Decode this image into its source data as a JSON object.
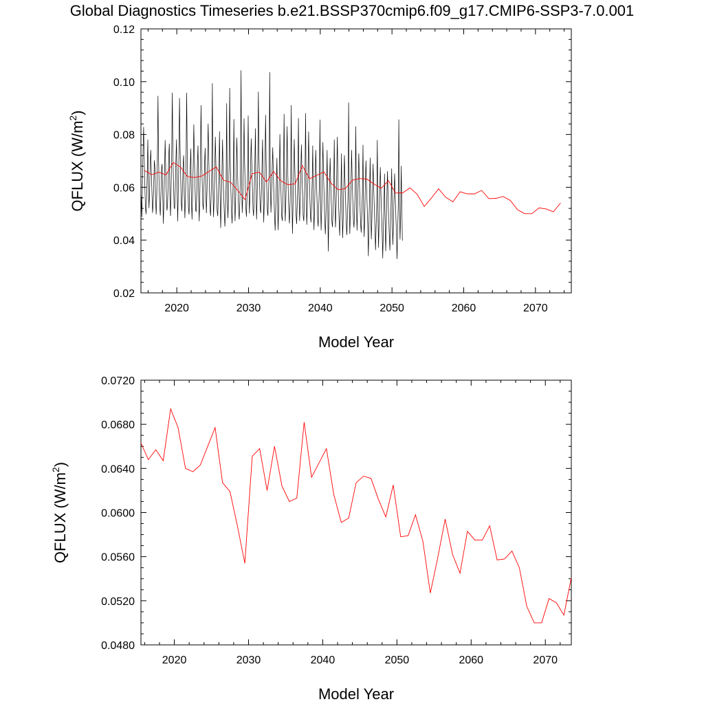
{
  "title": "Global Diagnostics Timeseries b.e21.BSSP370cmip6.f09_g17.CMIP6-SSP3-7.0.001",
  "colors": {
    "monthly": "#000000",
    "annual": "#ff0000",
    "axes": "#000000"
  },
  "chart_data": [
    {
      "type": "line",
      "title": "",
      "xlabel": "Model Year",
      "ylabel": "QFLUX (W/m",
      "ylabel_superscript": "2",
      "ylabel_close": ")",
      "xlim": [
        2015,
        2075
      ],
      "ylim": [
        0.02,
        0.12
      ],
      "xticks": [
        "2020",
        "2030",
        "2040",
        "2050",
        "2060",
        "2070"
      ],
      "yticks": [
        "0.02",
        "0.04",
        "0.06",
        "0.08",
        "0.10",
        "0.12"
      ],
      "grid": false,
      "series": [
        {
          "kind": "monthly",
          "color": "#000000",
          "x_start": 2015.04,
          "x_step": 0.08333,
          "values": [
            0.0568,
            0.0487,
            0.0621,
            0.0734,
            0.0828,
            0.0703,
            0.0612,
            0.0529,
            0.0498,
            0.0551,
            0.0642,
            0.0781,
            0.0601,
            0.0521,
            0.0583,
            0.0696,
            0.0741,
            0.0652,
            0.0574,
            0.0503,
            0.0541,
            0.0618,
            0.0702,
            0.0672,
            0.0552,
            0.0497,
            0.0568,
            0.0701,
            0.0946,
            0.0712,
            0.0601,
            0.0528,
            0.0493,
            0.0579,
            0.0671,
            0.0688,
            0.0571,
            0.0462,
            0.0554,
            0.0658,
            0.0779,
            0.0663,
            0.0584,
            0.0512,
            0.0531,
            0.0611,
            0.0718,
            0.0765,
            0.0567,
            0.0491,
            0.0603,
            0.0742,
            0.0958,
            0.0728,
            0.0611,
            0.0526,
            0.0518,
            0.0598,
            0.0697,
            0.0781,
            0.0588,
            0.0471,
            0.0579,
            0.0714,
            0.0938,
            0.0761,
            0.0632,
            0.0542,
            0.0509,
            0.0591,
            0.0682,
            0.0721,
            0.0572,
            0.0483,
            0.0561,
            0.0688,
            0.0958,
            0.0713,
            0.0612,
            0.0521,
            0.0497,
            0.0583,
            0.0674,
            0.0746,
            0.0553,
            0.0478,
            0.0582,
            0.0691,
            0.0838,
            0.0702,
            0.0603,
            0.0512,
            0.0508,
            0.0592,
            0.0688,
            0.0758,
            0.0561,
            0.0471,
            0.0563,
            0.0701,
            0.0911,
            0.0721,
            0.0621,
            0.0534,
            0.0514,
            0.0603,
            0.0693,
            0.0749,
            0.0584,
            0.0502,
            0.0584,
            0.0712,
            0.0841,
            0.0708,
            0.0603,
            0.0521,
            0.0492,
            0.0567,
            0.0667,
            0.0994,
            0.0598,
            0.0487,
            0.0561,
            0.0672,
            0.0791,
            0.0682,
            0.0594,
            0.0513,
            0.0491,
            0.0562,
            0.0644,
            0.0812,
            0.0566,
            0.0446,
            0.0545,
            0.0651,
            0.0781,
            0.0654,
            0.0573,
            0.0498,
            0.0451,
            0.0521,
            0.0612,
            0.0918,
            0.0572,
            0.0483,
            0.0562,
            0.0687,
            0.0976,
            0.0689,
            0.0592,
            0.0508,
            0.0463,
            0.0538,
            0.0641,
            0.0858,
            0.0564,
            0.0472,
            0.0553,
            0.0678,
            0.0788,
            0.0671,
            0.0582,
            0.0509,
            0.0478,
            0.0551,
            0.0659,
            0.1043,
            0.0621,
            0.0503,
            0.0567,
            0.0678,
            0.0861,
            0.0694,
            0.0601,
            0.0524,
            0.0488,
            0.0562,
            0.0658,
            0.0871,
            0.0613,
            0.0501,
            0.0574,
            0.0683,
            0.0785,
            0.0686,
            0.0602,
            0.0517,
            0.0491,
            0.0571,
            0.0672,
            0.0823,
            0.0592,
            0.0478,
            0.0561,
            0.0694,
            0.0962,
            0.0712,
            0.0612,
            0.0521,
            0.0502,
            0.0581,
            0.0669,
            0.0781,
            0.0583,
            0.0467,
            0.0553,
            0.0682,
            0.0874,
            0.0701,
            0.0598,
            0.0512,
            0.0492,
            0.0574,
            0.0671,
            0.1036,
            0.0627,
            0.0504,
            0.0571,
            0.0662,
            0.0751,
            0.0654,
            0.0574,
            0.0494,
            0.0436,
            0.0512,
            0.0605,
            0.0711,
            0.0561,
            0.0438,
            0.0528,
            0.0641,
            0.0801,
            0.0652,
            0.0567,
            0.0491,
            0.0473,
            0.0549,
            0.0642,
            0.0878,
            0.0588,
            0.0471,
            0.0546,
            0.0667,
            0.0831,
            0.0677,
            0.0586,
            0.0503,
            0.0463,
            0.0538,
            0.0628,
            0.0911,
            0.0571,
            0.0424,
            0.0529,
            0.0647,
            0.0782,
            0.0668,
            0.0576,
            0.0497,
            0.0461,
            0.0529,
            0.0614,
            0.0862,
            0.0572,
            0.0473,
            0.0541,
            0.0659,
            0.0762,
            0.0649,
            0.0571,
            0.0491,
            0.0472,
            0.0548,
            0.0631,
            0.0881,
            0.0561,
            0.0458,
            0.0531,
            0.0652,
            0.0811,
            0.0664,
            0.0576,
            0.0492,
            0.0467,
            0.0539,
            0.0624,
            0.0758,
            0.0541,
            0.0438,
            0.0514,
            0.0631,
            0.0741,
            0.0638,
            0.0561,
            0.0482,
            0.0451,
            0.0521,
            0.0603,
            0.0856,
            0.0553,
            0.0437,
            0.0521,
            0.0648,
            0.0771,
            0.0642,
            0.0563,
            0.0481,
            0.0422,
            0.0492,
            0.0583,
            0.0741,
            0.0532,
            0.0357,
            0.0498,
            0.0614,
            0.0711,
            0.0619,
            0.0541,
            0.0469,
            0.0449,
            0.0514,
            0.0598,
            0.0781,
            0.0547,
            0.0448,
            0.0522,
            0.0637,
            0.0791,
            0.0641,
            0.0558,
            0.0479,
            0.0417,
            0.0488,
            0.0574,
            0.0728,
            0.0523,
            0.0408,
            0.0492,
            0.0611,
            0.0721,
            0.0614,
            0.0538,
            0.0462,
            0.0419,
            0.0489,
            0.0567,
            0.0921,
            0.0541,
            0.0423,
            0.0503,
            0.0623,
            0.0741,
            0.0628,
            0.0547,
            0.0471,
            0.0448,
            0.0513,
            0.0596,
            0.0831,
            0.0542,
            0.0436,
            0.0512,
            0.0627,
            0.0728,
            0.0619,
            0.0541,
            0.0463,
            0.0428,
            0.0497,
            0.0578,
            0.0761,
            0.0528,
            0.0412,
            0.0491,
            0.0609,
            0.0701,
            0.0601,
            0.0527,
            0.0452,
            0.0339,
            0.0471,
            0.0556,
            0.0712,
            0.0511,
            0.0403,
            0.0484,
            0.0597,
            0.0689,
            0.0594,
            0.0518,
            0.0443,
            0.0362,
            0.0448,
            0.0541,
            0.0779,
            0.0502,
            0.0371,
            0.0467,
            0.0581,
            0.0676,
            0.0576,
            0.0503,
            0.0432,
            0.0331,
            0.0431,
            0.0521,
            0.0651,
            0.0488,
            0.0358,
            0.0451,
            0.0567,
            0.0661,
            0.0562,
            0.0492,
            0.0421,
            0.0361,
            0.0447,
            0.0534,
            0.0671,
            0.0492,
            0.0382,
            0.0463,
            0.0571,
            0.0652,
            0.0561,
            0.0491,
            0.0417,
            0.0328,
            0.0432,
            0.0533,
            0.0857,
            0.0521,
            0.0402,
            0.0489,
            0.0681,
            0.0521,
            0.0398
          ]
        },
        {
          "kind": "annual",
          "color": "#ff0000",
          "x": [
            2015.5,
            2016.5,
            2017.5,
            2018.5,
            2019.5,
            2020.5,
            2021.5,
            2022.5,
            2023.5,
            2024.5,
            2025.5,
            2026.5,
            2027.5,
            2028.5,
            2029.5,
            2030.5,
            2031.5,
            2032.5,
            2033.5,
            2034.5,
            2035.5,
            2036.5,
            2037.5,
            2038.5,
            2039.5,
            2040.5,
            2041.5,
            2042.5,
            2043.5,
            2044.5,
            2045.5,
            2046.5,
            2047.5,
            2048.5,
            2049.5,
            2050.5,
            2051.5,
            2052.5,
            2053.5,
            2054.5,
            2055.5,
            2056.5,
            2057.5,
            2058.5,
            2059.5,
            2060.5,
            2061.5,
            2062.5,
            2063.5,
            2064.5,
            2065.5,
            2066.5,
            2067.5,
            2068.5,
            2069.5,
            2070.5,
            2071.5,
            2072.5,
            2073.5
          ],
          "values": [
            0.0663,
            0.0648,
            0.0657,
            0.0647,
            0.0694,
            0.0677,
            0.064,
            0.0637,
            0.0643,
            0.066,
            0.0677,
            0.0627,
            0.0619,
            0.0588,
            0.0554,
            0.0651,
            0.0658,
            0.062,
            0.066,
            0.0624,
            0.061,
            0.0613,
            0.0682,
            0.0632,
            0.0645,
            0.0658,
            0.0616,
            0.0591,
            0.0595,
            0.0627,
            0.0633,
            0.0631,
            0.0612,
            0.0596,
            0.0625,
            0.0578,
            0.0579,
            0.0598,
            0.0574,
            0.0527,
            0.0559,
            0.0594,
            0.0562,
            0.0545,
            0.0583,
            0.0575,
            0.0575,
            0.0588,
            0.0557,
            0.0558,
            0.0565,
            0.055,
            0.0515,
            0.05,
            0.05,
            0.0522,
            0.0518,
            0.0507,
            0.0541
          ]
        }
      ]
    },
    {
      "type": "line",
      "title": "",
      "xlabel": "Model Year",
      "ylabel": "QFLUX (W/m",
      "ylabel_superscript": "2",
      "ylabel_close": ")",
      "xlim": [
        2015.5,
        2073.5
      ],
      "ylim": [
        0.048,
        0.072
      ],
      "xticks": [
        "2020",
        "2030",
        "2040",
        "2050",
        "2060",
        "2070"
      ],
      "yticks": [
        "0.0480",
        "0.0520",
        "0.0560",
        "0.0600",
        "0.0640",
        "0.0680",
        "0.0720"
      ],
      "grid": false,
      "series": [
        {
          "kind": "annual",
          "color": "#ff0000",
          "x": [
            2015.5,
            2016.5,
            2017.5,
            2018.5,
            2019.5,
            2020.5,
            2021.5,
            2022.5,
            2023.5,
            2024.5,
            2025.5,
            2026.5,
            2027.5,
            2028.5,
            2029.5,
            2030.5,
            2031.5,
            2032.5,
            2033.5,
            2034.5,
            2035.5,
            2036.5,
            2037.5,
            2038.5,
            2039.5,
            2040.5,
            2041.5,
            2042.5,
            2043.5,
            2044.5,
            2045.5,
            2046.5,
            2047.5,
            2048.5,
            2049.5,
            2050.5,
            2051.5,
            2052.5,
            2053.5,
            2054.5,
            2055.5,
            2056.5,
            2057.5,
            2058.5,
            2059.5,
            2060.5,
            2061.5,
            2062.5,
            2063.5,
            2064.5,
            2065.5,
            2066.5,
            2067.5,
            2068.5,
            2069.5,
            2070.5,
            2071.5,
            2072.5,
            2073.5
          ],
          "values": [
            0.0663,
            0.0648,
            0.0657,
            0.0647,
            0.0694,
            0.0677,
            0.064,
            0.0637,
            0.0643,
            0.066,
            0.0677,
            0.0627,
            0.0619,
            0.0588,
            0.0554,
            0.0651,
            0.0658,
            0.062,
            0.066,
            0.0624,
            0.061,
            0.0613,
            0.0682,
            0.0632,
            0.0645,
            0.0658,
            0.0616,
            0.0591,
            0.0595,
            0.0627,
            0.0633,
            0.0631,
            0.0612,
            0.0596,
            0.0625,
            0.0578,
            0.0579,
            0.0598,
            0.0574,
            0.0527,
            0.0559,
            0.0594,
            0.0562,
            0.0545,
            0.0583,
            0.0575,
            0.0575,
            0.0588,
            0.0557,
            0.0558,
            0.0565,
            0.055,
            0.0515,
            0.05,
            0.05,
            0.0522,
            0.0518,
            0.0507,
            0.0541
          ]
        }
      ]
    }
  ]
}
